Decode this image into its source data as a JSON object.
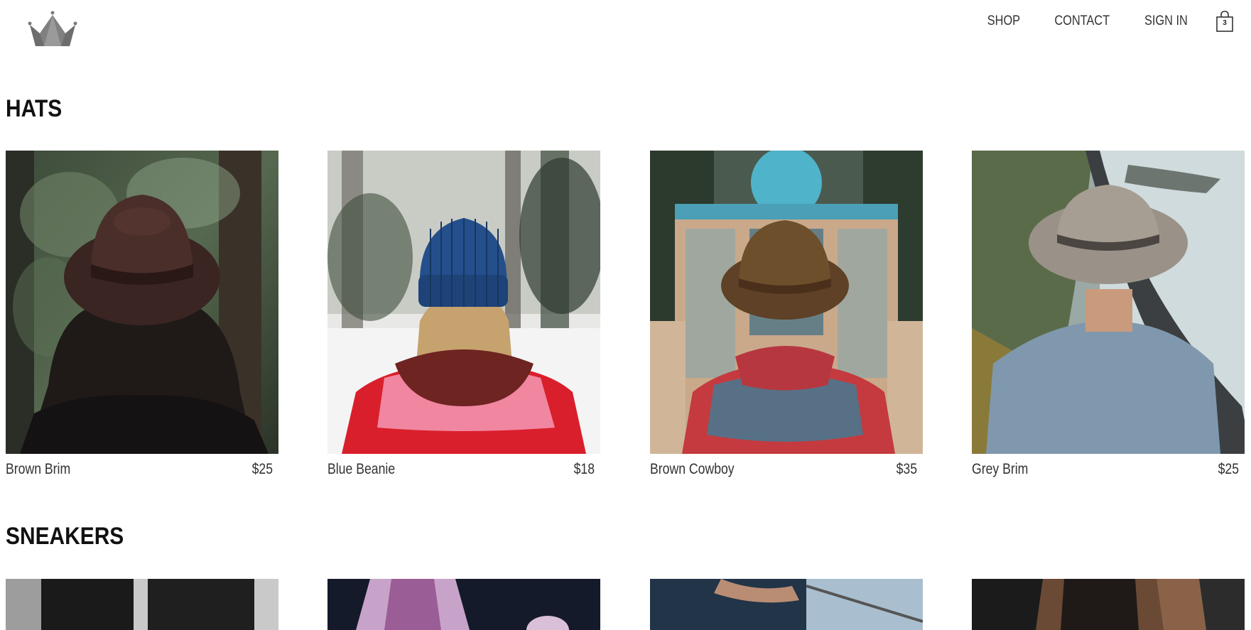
{
  "header": {
    "logo_icon": "crown-icon",
    "nav": [
      {
        "label": "SHOP"
      },
      {
        "label": "CONTACT"
      },
      {
        "label": "SIGN IN"
      }
    ],
    "cart": {
      "icon": "shopping-bag-icon",
      "count": "3"
    }
  },
  "sections": [
    {
      "title": "HATS",
      "items": [
        {
          "name": "Brown Brim",
          "price": "$25"
        },
        {
          "name": "Blue Beanie",
          "price": "$18"
        },
        {
          "name": "Brown Cowboy",
          "price": "$35"
        },
        {
          "name": "Grey Brim",
          "price": "$25"
        }
      ]
    },
    {
      "title": "SNEAKERS",
      "items": [
        {
          "name": "",
          "price": ""
        },
        {
          "name": "",
          "price": ""
        },
        {
          "name": "",
          "price": ""
        },
        {
          "name": "",
          "price": ""
        }
      ]
    }
  ]
}
